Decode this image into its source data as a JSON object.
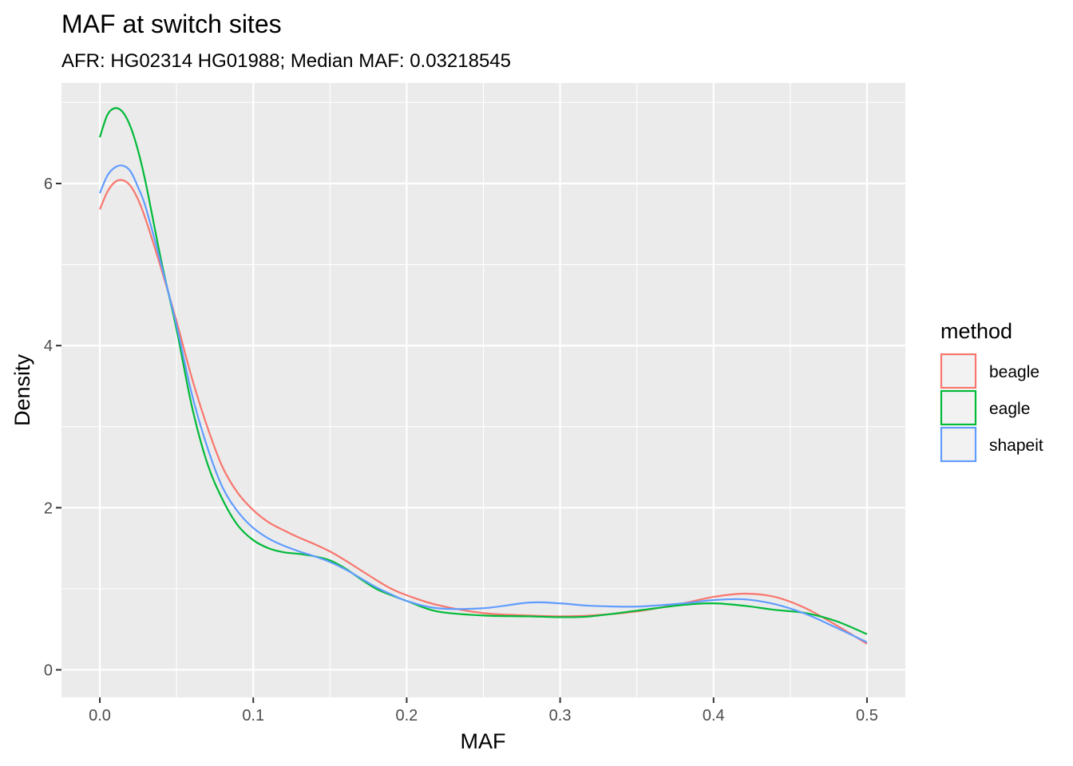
{
  "chart_data": {
    "type": "line",
    "title": "MAF at switch sites",
    "subtitle": "AFR: HG02314 HG01988; Median MAF: 0.03218545",
    "xlabel": "MAF",
    "ylabel": "Density",
    "xlim": [
      -0.025,
      0.525
    ],
    "ylim": [
      -0.34,
      7.24
    ],
    "x_ticks": [
      0.0,
      0.1,
      0.2,
      0.3,
      0.4,
      0.5
    ],
    "x_tick_labels": [
      "0.0",
      "0.1",
      "0.2",
      "0.3",
      "0.4",
      "0.5"
    ],
    "y_ticks": [
      0,
      2,
      4,
      6
    ],
    "y_tick_labels": [
      "0",
      "2",
      "4",
      "6"
    ],
    "grid": true,
    "legend_position": "right",
    "legend_title": "method",
    "series": [
      {
        "name": "beagle",
        "color": "#F8766D",
        "x": [
          0.0,
          0.005,
          0.01,
          0.015,
          0.02,
          0.025,
          0.03,
          0.04,
          0.05,
          0.06,
          0.07,
          0.08,
          0.09,
          0.1,
          0.11,
          0.12,
          0.13,
          0.14,
          0.15,
          0.16,
          0.17,
          0.18,
          0.19,
          0.2,
          0.22,
          0.25,
          0.28,
          0.3,
          0.32,
          0.35,
          0.38,
          0.4,
          0.42,
          0.44,
          0.46,
          0.48,
          0.5
        ],
        "y": [
          5.68,
          5.9,
          6.02,
          6.04,
          5.97,
          5.8,
          5.55,
          4.95,
          4.3,
          3.6,
          3.0,
          2.5,
          2.18,
          1.97,
          1.82,
          1.72,
          1.63,
          1.55,
          1.46,
          1.35,
          1.23,
          1.11,
          1.0,
          0.92,
          0.8,
          0.7,
          0.67,
          0.66,
          0.67,
          0.72,
          0.82,
          0.9,
          0.94,
          0.9,
          0.76,
          0.55,
          0.32
        ]
      },
      {
        "name": "eagle",
        "color": "#00BA38",
        "x": [
          0.0,
          0.005,
          0.01,
          0.015,
          0.02,
          0.025,
          0.03,
          0.04,
          0.05,
          0.06,
          0.07,
          0.08,
          0.09,
          0.1,
          0.11,
          0.12,
          0.13,
          0.14,
          0.15,
          0.16,
          0.17,
          0.18,
          0.19,
          0.2,
          0.22,
          0.25,
          0.28,
          0.3,
          0.32,
          0.35,
          0.38,
          0.4,
          0.42,
          0.44,
          0.46,
          0.48,
          0.5
        ],
        "y": [
          6.57,
          6.85,
          6.93,
          6.88,
          6.7,
          6.4,
          6.0,
          5.05,
          4.2,
          3.25,
          2.55,
          2.1,
          1.78,
          1.6,
          1.5,
          1.45,
          1.43,
          1.4,
          1.35,
          1.25,
          1.12,
          1.0,
          0.92,
          0.85,
          0.72,
          0.67,
          0.66,
          0.65,
          0.66,
          0.73,
          0.8,
          0.82,
          0.79,
          0.74,
          0.7,
          0.6,
          0.44
        ]
      },
      {
        "name": "shapeit",
        "color": "#619CFF",
        "x": [
          0.0,
          0.005,
          0.01,
          0.015,
          0.02,
          0.025,
          0.03,
          0.04,
          0.05,
          0.06,
          0.07,
          0.08,
          0.09,
          0.1,
          0.11,
          0.12,
          0.13,
          0.14,
          0.15,
          0.16,
          0.17,
          0.18,
          0.19,
          0.2,
          0.22,
          0.25,
          0.28,
          0.3,
          0.32,
          0.35,
          0.38,
          0.4,
          0.42,
          0.44,
          0.46,
          0.48,
          0.5
        ],
        "y": [
          5.88,
          6.1,
          6.2,
          6.22,
          6.15,
          5.95,
          5.7,
          5.0,
          4.25,
          3.4,
          2.75,
          2.25,
          1.95,
          1.75,
          1.62,
          1.53,
          1.46,
          1.4,
          1.33,
          1.24,
          1.13,
          1.02,
          0.93,
          0.85,
          0.76,
          0.76,
          0.83,
          0.82,
          0.79,
          0.78,
          0.82,
          0.86,
          0.87,
          0.81,
          0.69,
          0.52,
          0.34
        ]
      }
    ]
  }
}
